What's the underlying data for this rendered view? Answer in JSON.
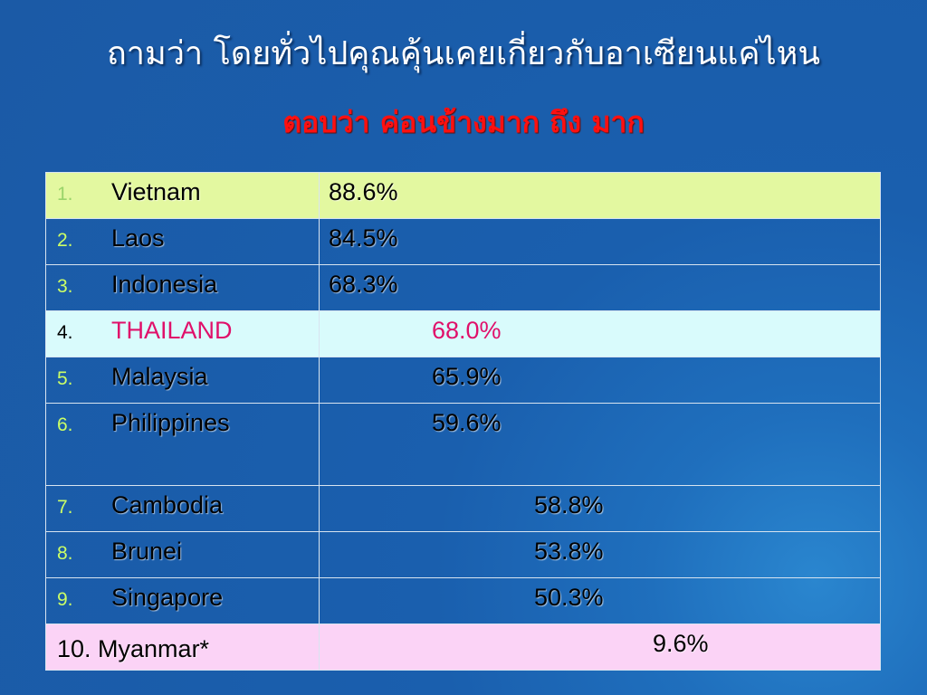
{
  "header": {
    "title": "ถามว่า  โดยทั่วไปคุณคุ้นเคยเกี่ยวกับอาเซียนแค่ไหน",
    "subtitle": "ตอบว่า ค่อนข้างมาก ถึง มาก"
  },
  "table": {
    "rows": [
      {
        "number": "1.",
        "name": "Vietnam",
        "value": "88.6%"
      },
      {
        "number": "2.",
        "name": "Laos",
        "value": "84.5%"
      },
      {
        "number": "3.",
        "name": "Indonesia",
        "value": "68.3%"
      },
      {
        "number": "4.",
        "name": "THAILAND",
        "value": "68.0%"
      },
      {
        "number": "5.",
        "name": "Malaysia",
        "value": "65.9%"
      },
      {
        "number": "6.",
        "name": "Philippines",
        "value": "59.6%"
      },
      {
        "number": "7.",
        "name": "Cambodia",
        "value": "58.8%"
      },
      {
        "number": "8.",
        "name": "Brunei",
        "value": "53.8%"
      },
      {
        "number": "9.",
        "name": "Singapore",
        "value": "50.3%"
      },
      {
        "name": "10. Myanmar*",
        "value": "9.6%"
      }
    ]
  }
}
